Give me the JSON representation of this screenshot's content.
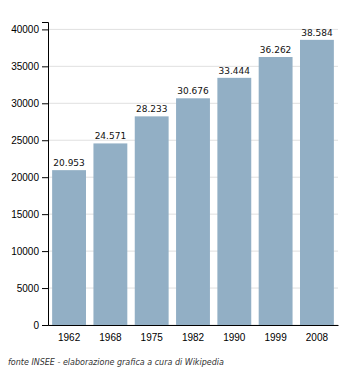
{
  "chart_data": {
    "type": "bar",
    "categories": [
      "1962",
      "1968",
      "1975",
      "1982",
      "1990",
      "1999",
      "2008"
    ],
    "values": [
      20953,
      24571,
      28233,
      30676,
      33444,
      36262,
      38584
    ],
    "value_labels": [
      "20.953",
      "24.571",
      "28.233",
      "30.676",
      "33.444",
      "36.262",
      "38.584"
    ],
    "data_labels": true,
    "color": "#92afc5",
    "ylim": [
      0,
      41000
    ],
    "yticks": [
      0,
      5000,
      10000,
      15000,
      20000,
      25000,
      30000,
      35000,
      40000
    ],
    "grid": true,
    "annotations": [
      "fonte INSEE - elaborazione grafica a cura di Wikipedia"
    ]
  }
}
